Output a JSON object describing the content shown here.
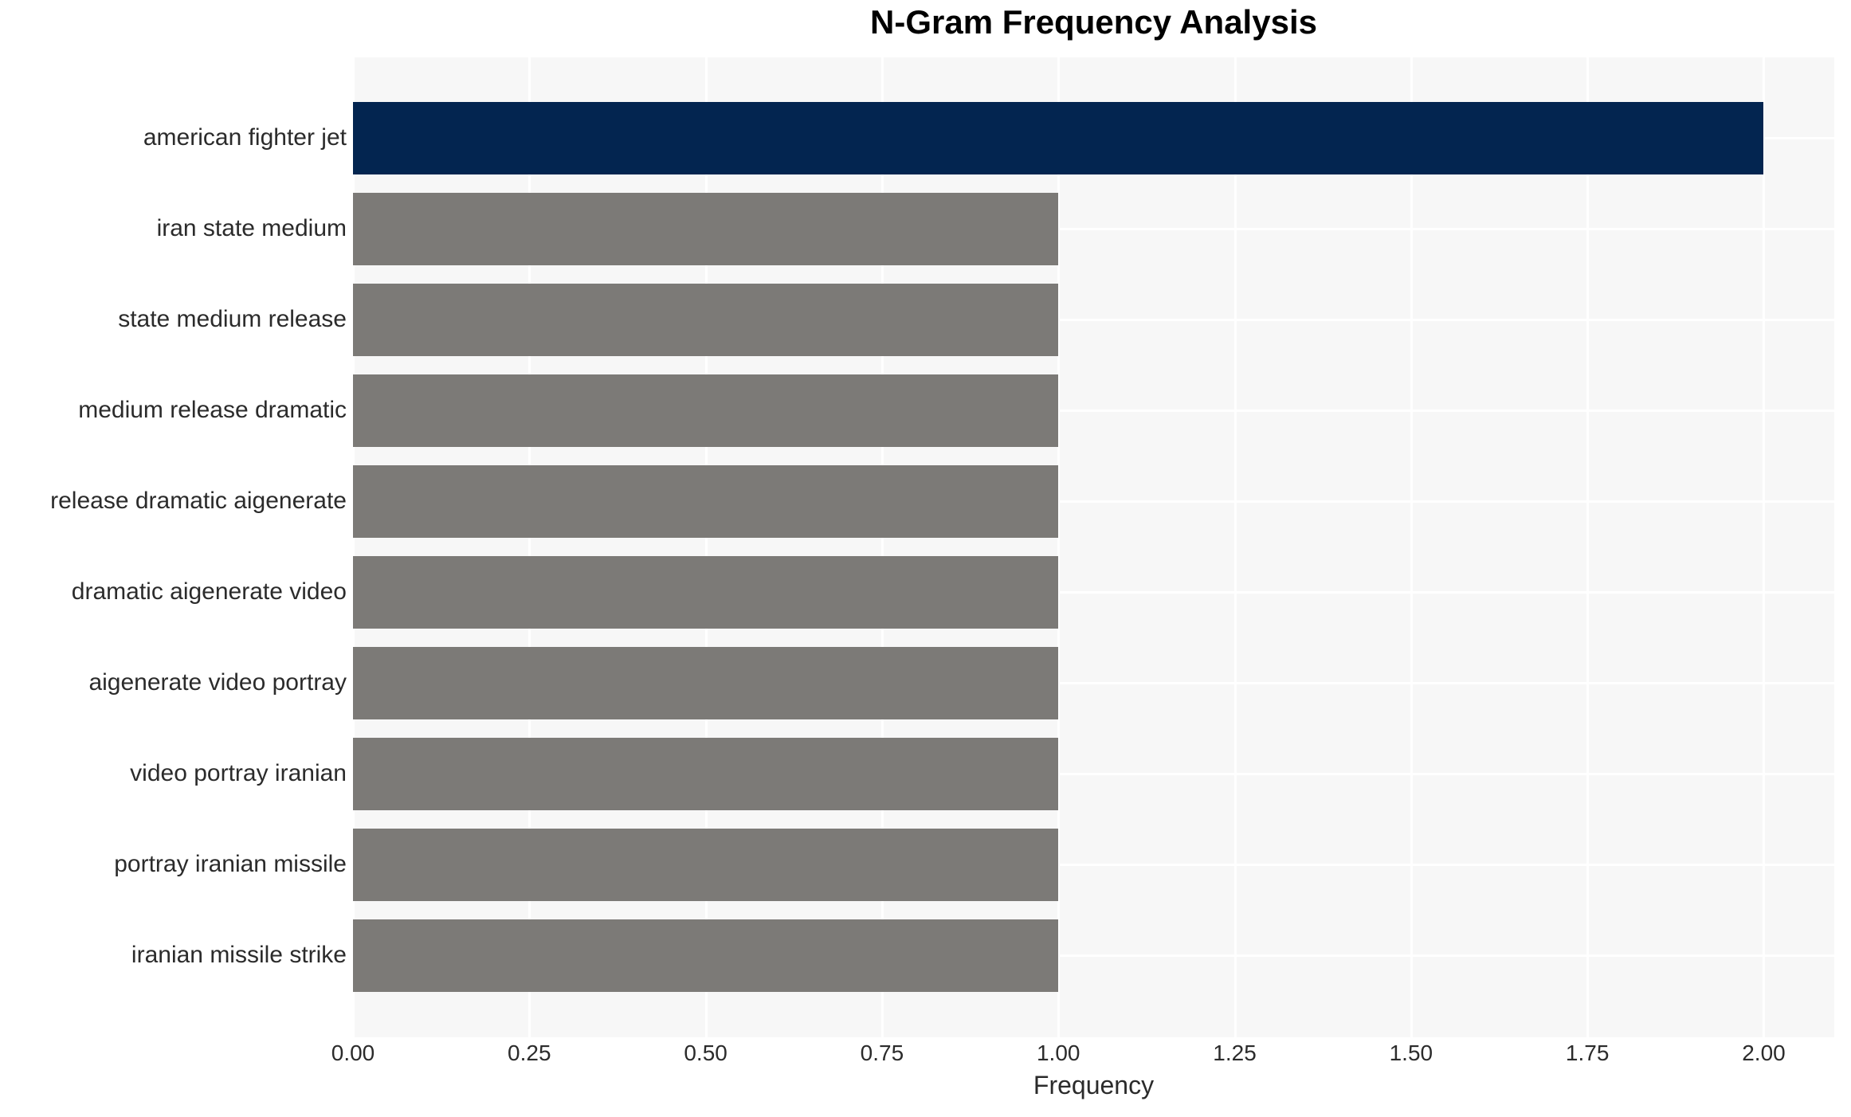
{
  "chart_data": {
    "type": "bar",
    "orientation": "horizontal",
    "title": "N-Gram Frequency Analysis",
    "xlabel": "Frequency",
    "ylabel": "",
    "categories": [
      "american fighter jet",
      "iran state medium",
      "state medium release",
      "medium release dramatic",
      "release dramatic aigenerate",
      "dramatic aigenerate video",
      "aigenerate video portray",
      "video portray iranian",
      "portray iranian missile",
      "iranian missile strike"
    ],
    "values": [
      2,
      1,
      1,
      1,
      1,
      1,
      1,
      1,
      1,
      1
    ],
    "bar_colors": [
      "#032550",
      "#7c7a77",
      "#7c7a77",
      "#7c7a77",
      "#7c7a77",
      "#7c7a77",
      "#7c7a77",
      "#7c7a77",
      "#7c7a77",
      "#7c7a77"
    ],
    "xlim": [
      0,
      2.1
    ],
    "x_ticks": [
      {
        "value": 0.0,
        "label": "0.00"
      },
      {
        "value": 0.25,
        "label": "0.25"
      },
      {
        "value": 0.5,
        "label": "0.50"
      },
      {
        "value": 0.75,
        "label": "0.75"
      },
      {
        "value": 1.0,
        "label": "1.00"
      },
      {
        "value": 1.25,
        "label": "1.25"
      },
      {
        "value": 1.5,
        "label": "1.50"
      },
      {
        "value": 1.75,
        "label": "1.75"
      },
      {
        "value": 2.0,
        "label": "2.00"
      }
    ],
    "grid": true,
    "legend": null,
    "colors": {
      "highlight_bar": "#032550",
      "default_bar": "#7c7a77",
      "plot_background": "#f7f7f7",
      "grid_line": "#ffffff",
      "text": "#2b2b2b",
      "title_text": "#000000",
      "figure_background": "#ffffff"
    }
  }
}
